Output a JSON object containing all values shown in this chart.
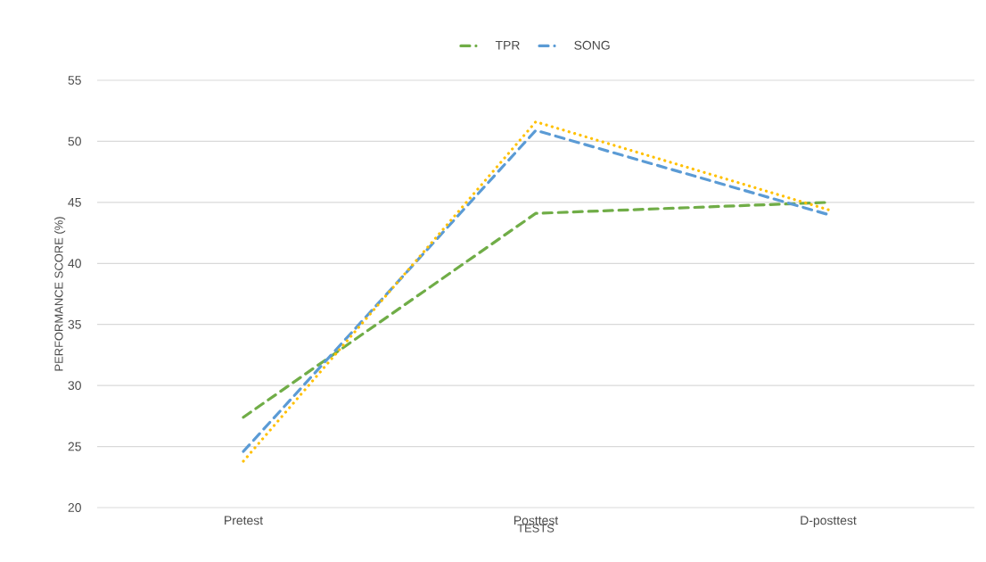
{
  "chart_data": {
    "type": "line",
    "xlabel": "TESTS",
    "ylabel": "PERFORMANCE SCORE (%)",
    "categories": [
      "Pretest",
      "Posttest",
      "D-posttest"
    ],
    "series": [
      {
        "name": "TPR",
        "color": "#70ad47",
        "line_style": "dashed",
        "values": [
          27.4,
          44.1,
          45.0
        ]
      },
      {
        "name": "SONG",
        "color": "#5b9bd5",
        "line_style": "dashed",
        "values": [
          24.6,
          50.9,
          44.0
        ]
      },
      {
        "color": "#ffc000",
        "line_style": "dotted",
        "values": [
          23.8,
          51.6,
          44.4
        ]
      }
    ],
    "ylim": [
      20,
      55
    ],
    "yticks": [
      20,
      25,
      30,
      35,
      40,
      45,
      50,
      55
    ],
    "grid": "y",
    "legend": "top",
    "marker": "none"
  }
}
